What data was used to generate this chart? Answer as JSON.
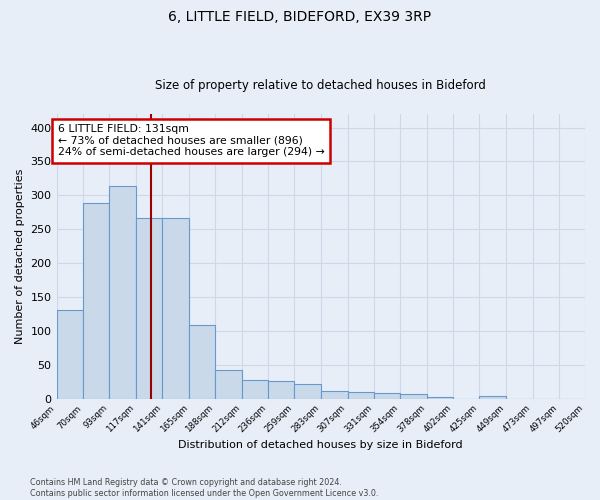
{
  "title1": "6, LITTLE FIELD, BIDEFORD, EX39 3RP",
  "title2": "Size of property relative to detached houses in Bideford",
  "xlabel": "Distribution of detached houses by size in Bideford",
  "ylabel": "Number of detached properties",
  "footnote": "Contains HM Land Registry data © Crown copyright and database right 2024.\nContains public sector information licensed under the Open Government Licence v3.0.",
  "annotation_title": "6 LITTLE FIELD: 131sqm",
  "annotation_line2": "← 73% of detached houses are smaller (896)",
  "annotation_line3": "24% of semi-detached houses are larger (294) →",
  "subject_value": 131,
  "bar_edges": [
    46,
    70,
    93,
    117,
    141,
    165,
    188,
    212,
    236,
    259,
    283,
    307,
    331,
    354,
    378,
    402,
    425,
    449,
    473,
    497,
    520
  ],
  "bar_heights": [
    130,
    288,
    313,
    267,
    267,
    108,
    42,
    27,
    26,
    22,
    11,
    9,
    8,
    7,
    2,
    0,
    4,
    0,
    0,
    0
  ],
  "bar_color": "#c9d9ea",
  "bar_edge_color": "#6699cc",
  "subject_line_color": "#990000",
  "annotation_box_edge_color": "#cc0000",
  "annotation_box_face_color": "#ffffff",
  "bg_color": "#e8eef8",
  "grid_color": "#d0d8e8",
  "ylim": [
    0,
    420
  ],
  "yticks": [
    0,
    50,
    100,
    150,
    200,
    250,
    300,
    350,
    400
  ]
}
